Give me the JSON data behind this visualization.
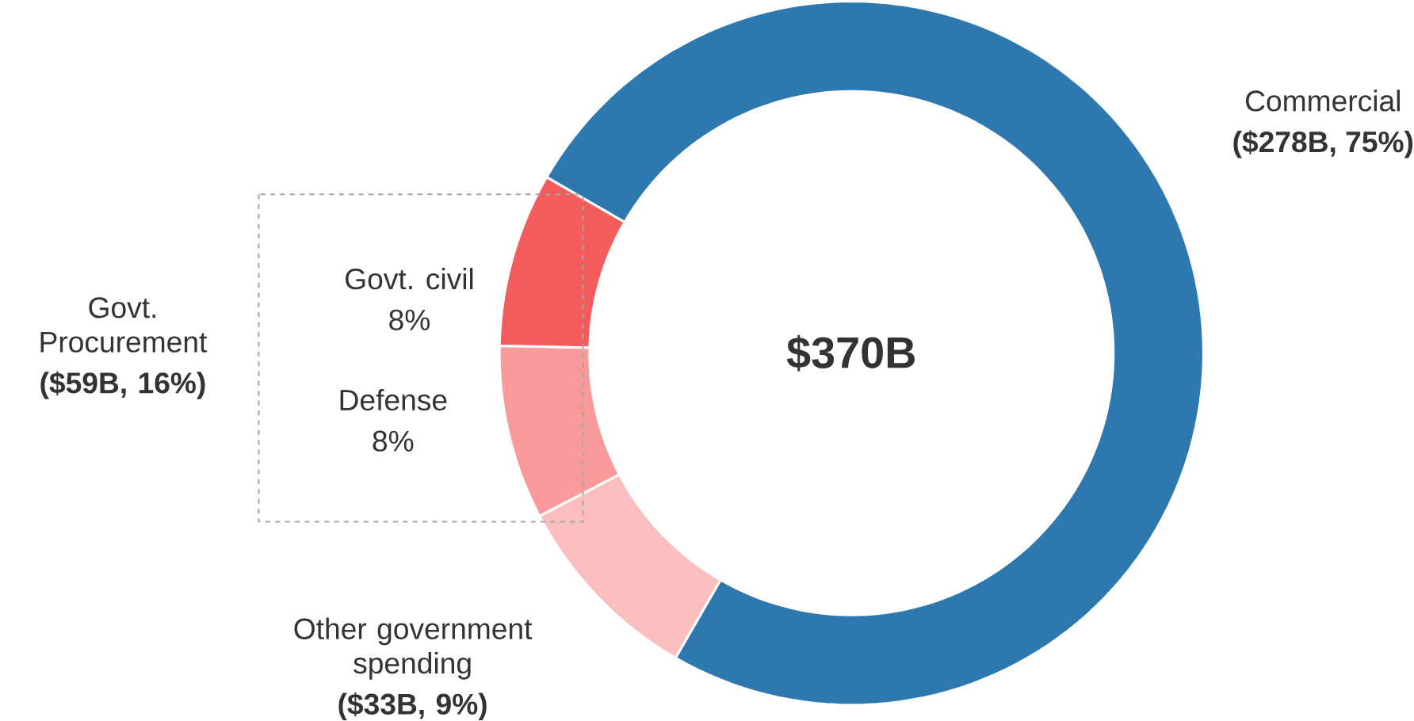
{
  "chart_data": {
    "type": "donut",
    "categories": [
      "Commercial",
      "Other government spending",
      "Defense",
      "Govt. civil"
    ],
    "values": [
      75,
      9,
      8,
      8
    ],
    "colors": [
      "#2e78b0",
      "#fbbdbe",
      "#f89a9a",
      "#f45b5b"
    ],
    "value_labels": [
      "($278B, 75%)",
      "($33B, 9%)",
      "8%",
      "8%"
    ],
    "annotations": [
      "$370B",
      "Govt. Procurement",
      "($59B, 16%)"
    ]
  }
}
